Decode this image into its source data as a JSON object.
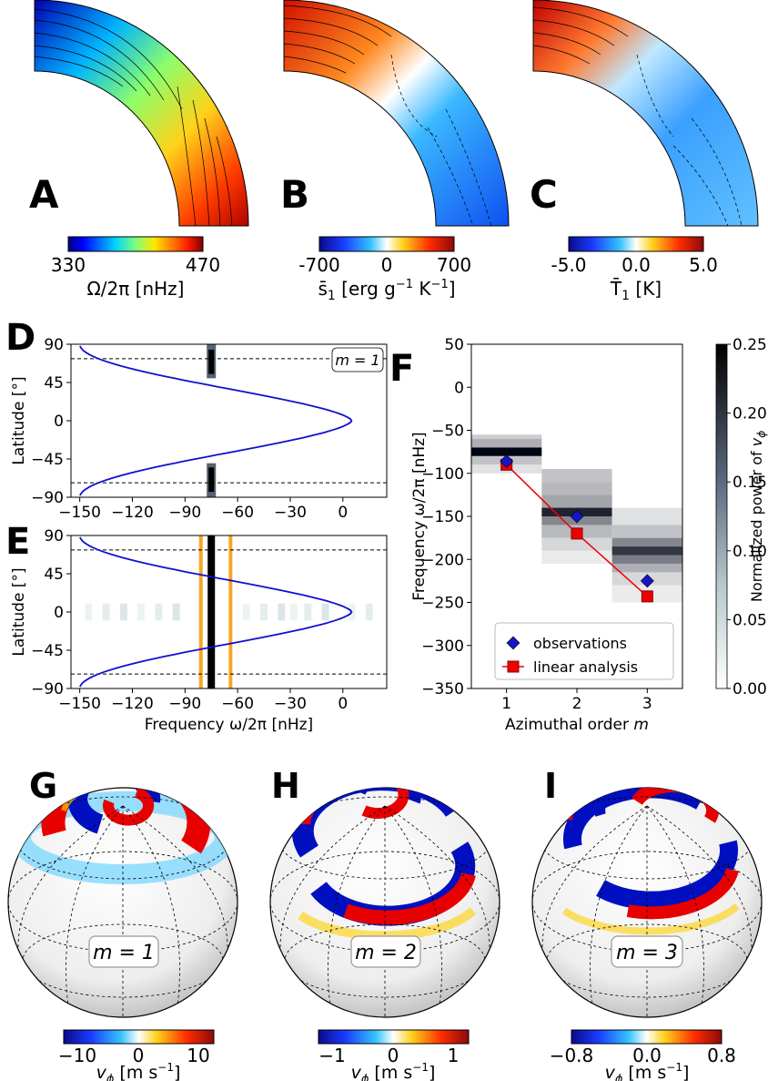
{
  "panels": {
    "A": {
      "letter": "A",
      "cbar_ticks": [
        "330",
        "470"
      ],
      "cbar_label": "Ω/2π [nHz]"
    },
    "B": {
      "letter": "B",
      "cbar_ticks": [
        "-700",
        "0",
        "700"
      ],
      "cbar_label_main": "s̄",
      "cbar_label_sub": "1",
      "cbar_label_rest": " [erg g",
      "cbar_exp1": "−1",
      "cbar_label_mid": " K",
      "cbar_exp2": "−1",
      "cbar_label_end": "]"
    },
    "C": {
      "letter": "C",
      "cbar_ticks": [
        "-5.0",
        "0.0",
        "5.0"
      ],
      "cbar_label_main": "T̄",
      "cbar_label_sub": "1",
      "cbar_label_rest": " [K]"
    },
    "D": {
      "letter": "D",
      "mode_label": "m = 1"
    },
    "E": {
      "letter": "E"
    },
    "F": {
      "letter": "F"
    },
    "G": {
      "letter": "G",
      "mode_label": "m = 1",
      "cbar_ticks": [
        "−10",
        "0",
        "10"
      ]
    },
    "H": {
      "letter": "H",
      "mode_label": "m = 2",
      "cbar_ticks": [
        "−1",
        "0",
        "1"
      ]
    },
    "I": {
      "letter": "I",
      "mode_label": "m = 3",
      "cbar_ticks": [
        "−0.8",
        "0.0",
        "0.8"
      ]
    }
  },
  "vphi_label": {
    "main": "v",
    "sub": "ϕ",
    "rest": " [m s",
    "exp": "−1",
    "end": "]"
  },
  "chart_data": [
    {
      "panel": "D",
      "type": "line",
      "xlabel": "",
      "ylabel": "Latitude [°]",
      "xlim": [
        -155,
        25
      ],
      "ylim": [
        -90,
        90
      ],
      "xticks": [
        "−150",
        "−120",
        "−90",
        "−60",
        "−30",
        "0"
      ],
      "yticks": [
        "90",
        "45",
        "0",
        "−45",
        "−90"
      ],
      "series": [
        {
          "values_desc": "blue dispersion curve",
          "x": [
            -150,
            -120,
            -90,
            -70,
            -50,
            -30,
            -10,
            0,
            5,
            0,
            -10,
            -30,
            -50,
            -70,
            -90,
            -120,
            -150
          ],
          "y": [
            88,
            80,
            72,
            62,
            52,
            42,
            25,
            12,
            0,
            -12,
            -25,
            -42,
            -52,
            -62,
            -72,
            -80,
            -88
          ]
        }
      ],
      "hlines": [
        73,
        -73
      ],
      "vband_x": -75
    },
    {
      "panel": "E",
      "type": "line",
      "xlabel": "Frequency ω/2π [nHz]",
      "ylabel": "Latitude [°]",
      "xlim": [
        -155,
        25
      ],
      "ylim": [
        -90,
        90
      ],
      "xticks": [
        "−150",
        "−120",
        "−90",
        "−60",
        "−30",
        "0"
      ],
      "yticks": [
        "90",
        "45",
        "0",
        "−45",
        "−90"
      ],
      "hlines": [
        73,
        -73
      ],
      "vband_x": -75,
      "window": [
        -82,
        -63
      ]
    },
    {
      "panel": "F",
      "type": "scatter",
      "xlabel": "Azimuthal order",
      "xlabel_var": "m",
      "ylabel": "Frequency ω/2π [nHz]",
      "xlim": [
        0.5,
        3.5
      ],
      "ylim": [
        -350,
        50
      ],
      "xticks": [
        "1",
        "2",
        "3"
      ],
      "yticks": [
        "50",
        "0",
        "−50",
        "−100",
        "−150",
        "−200",
        "−250",
        "−300",
        "−350"
      ],
      "series": [
        {
          "name": "observations",
          "x": [
            1,
            2,
            3
          ],
          "y": [
            -86,
            -150,
            -225
          ]
        },
        {
          "name": "linear analysis",
          "x": [
            1,
            2,
            3
          ],
          "y": [
            -90,
            -170,
            -243
          ]
        }
      ],
      "colorbar": {
        "label": "Normalized power of",
        "label_var": "v",
        "label_sub": "ϕ",
        "ticks": [
          "0.25",
          "0.20",
          "0.15",
          "0.10",
          "0.05",
          "0.00"
        ]
      }
    }
  ]
}
